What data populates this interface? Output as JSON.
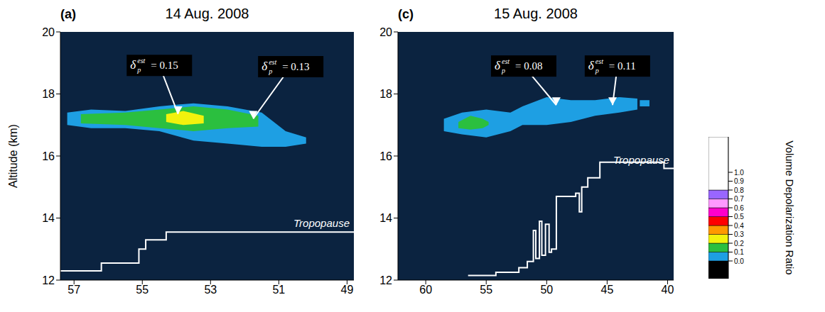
{
  "chart_data": [
    {
      "type": "area",
      "title": "14 Aug. 2008",
      "panel": "(a)",
      "y_label": "Altitude (km)",
      "xlim": [
        57.4,
        48.8
      ],
      "xticks": [
        57,
        55,
        53,
        51,
        49
      ],
      "ylim": [
        12,
        20
      ],
      "yticks": [
        12,
        14,
        16,
        18,
        20
      ],
      "background": "#0b2340",
      "series": [
        {
          "color": "#1e9fe3",
          "x": [
            57.2,
            56.5,
            55.5,
            54.5,
            53.5,
            52.5,
            51.5,
            50.8,
            50.2
          ],
          "lower": [
            17.0,
            16.9,
            16.9,
            16.8,
            16.5,
            16.4,
            16.3,
            16.3,
            16.4
          ],
          "upper": [
            17.4,
            17.5,
            17.45,
            17.6,
            17.7,
            17.6,
            17.4,
            16.8,
            16.6
          ]
        },
        {
          "color": "#2bbf3f",
          "x": [
            56.8,
            55.5,
            54.5,
            53.5,
            52.5,
            51.6
          ],
          "lower": [
            17.05,
            17.0,
            16.9,
            16.8,
            16.9,
            16.95
          ],
          "upper": [
            17.35,
            17.4,
            17.5,
            17.6,
            17.5,
            17.3
          ]
        },
        {
          "color": "#f2f20d",
          "x": [
            54.3,
            53.8,
            53.2
          ],
          "lower": [
            17.1,
            17.0,
            17.05
          ],
          "upper": [
            17.35,
            17.45,
            17.3
          ]
        }
      ],
      "tropopause": {
        "name": "Tropopause",
        "color": "#ffffff",
        "line_style": "step",
        "x": [
          57.4,
          56.2,
          55.1,
          54.9,
          54.3,
          48.8
        ],
        "values": [
          12.3,
          12.55,
          13.0,
          13.3,
          13.55,
          13.55
        ]
      },
      "annotations": [
        {
          "symbol": "δ",
          "sub": "p",
          "sup": "est",
          "text": "= 0.15",
          "x": 53.95,
          "y": 17.35,
          "text_x": 54.5,
          "text_y": 18.92
        },
        {
          "symbol": "δ",
          "sub": "p",
          "sup": "est",
          "text": "= 0.13",
          "x": 51.75,
          "y": 17.2,
          "text_x": 50.65,
          "text_y": 18.88
        }
      ]
    },
    {
      "type": "area",
      "title": "15 Aug. 2008",
      "panel": "(c)",
      "xlim": [
        62.3,
        39.5
      ],
      "xticks": [
        60,
        55,
        50,
        45,
        40
      ],
      "ylim": [
        12,
        20
      ],
      "yticks": [
        12,
        14,
        16,
        18,
        20
      ],
      "background": "#0b2340",
      "series": [
        {
          "color": "#1e9fe3",
          "x": [
            58.5,
            57,
            55,
            53,
            52,
            50,
            48,
            46,
            44,
            42.5
          ],
          "lower": [
            16.8,
            16.7,
            16.6,
            16.8,
            17.0,
            17.0,
            17.1,
            17.3,
            17.4,
            17.5
          ],
          "upper": [
            17.2,
            17.4,
            17.5,
            17.4,
            17.6,
            17.9,
            17.8,
            17.8,
            17.9,
            17.85
          ]
        },
        {
          "color": "#2bbf3f",
          "x": [
            57.3,
            56.3,
            55.3,
            54.8
          ],
          "lower": [
            16.9,
            16.85,
            16.9,
            17.0
          ],
          "upper": [
            17.1,
            17.3,
            17.2,
            17.1
          ]
        },
        {
          "color": "#1e9fe3",
          "x": [
            42.3,
            41.5
          ],
          "lower": [
            17.6,
            17.6
          ],
          "upper": [
            17.8,
            17.8
          ]
        }
      ],
      "tropopause": {
        "name": "Tropopause",
        "color": "#ffffff",
        "line_style": "step",
        "x": [
          56.5,
          54.2,
          52.3,
          51.6,
          51.1,
          50.9,
          50.6,
          50.4,
          50.1,
          49.8,
          49.6,
          49.2,
          47.6,
          47.3,
          47.1,
          46.6,
          45.6,
          40.3,
          39.5
        ],
        "values": [
          12.15,
          12.25,
          12.4,
          12.6,
          13.6,
          12.7,
          13.9,
          12.8,
          13.8,
          12.9,
          13.0,
          14.7,
          14.8,
          14.2,
          15.0,
          15.3,
          15.8,
          15.6,
          15.6
        ]
      },
      "annotations": [
        {
          "symbol": "δ",
          "sub": "p",
          "sup": "est",
          "text": "= 0.08",
          "x": 49.2,
          "y": 17.64,
          "text_x": 51.9,
          "text_y": 18.9
        },
        {
          "symbol": "δ",
          "sub": "p",
          "sup": "est",
          "text": "= 0.11",
          "x": 44.55,
          "y": 17.64,
          "text_x": 44.15,
          "text_y": 18.9
        }
      ]
    }
  ],
  "colorbar": {
    "title": "Volume Depolarization Ratio",
    "range": [
      -0.2,
      1.4
    ],
    "ticks": [
      {
        "value": 0,
        "label": "0.0"
      },
      0.1,
      0.2,
      0.3,
      0.4,
      0.5,
      0.6,
      0.7,
      0.8,
      0.9,
      {
        "value": 1,
        "label": "1.0"
      }
    ],
    "bounds": [
      -0.2,
      0.0,
      0.1,
      0.2,
      0.3,
      0.4,
      0.5,
      0.6,
      0.7,
      0.8,
      1.4
    ],
    "colors": [
      "#000000",
      "#1e9fe3",
      "#2bbf3f",
      "#f2f20d",
      "#ff9900",
      "#ff0000",
      "#ff00cc",
      "#ff99ff",
      "#9966ff",
      "#ffffff"
    ]
  }
}
